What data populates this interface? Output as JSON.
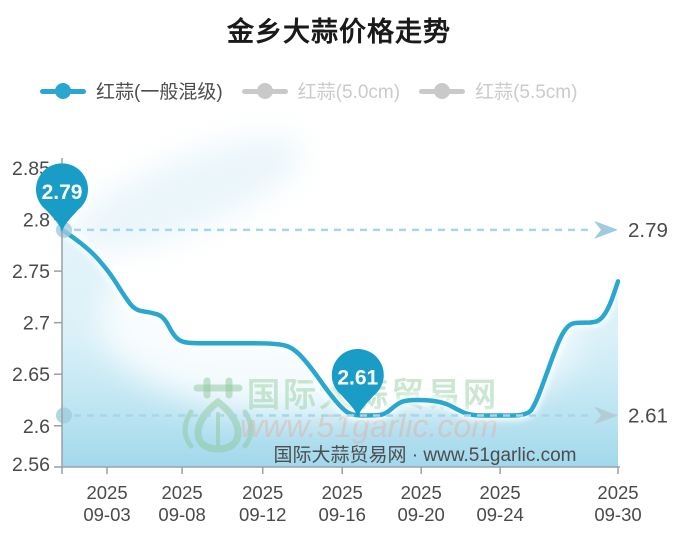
{
  "header": {
    "title": "金乡大蒜价格走势"
  },
  "legend": {
    "items": [
      {
        "label": "红蒜(一般混级)",
        "active": true
      },
      {
        "label": "红蒜(5.0cm)",
        "active": false
      },
      {
        "label": "红蒜(5.5cm)",
        "active": false
      }
    ]
  },
  "watermark": {
    "site_name": "国际大蒜贸易网",
    "site_url": "www.51garlic.com",
    "icon": "garlic-bulb-logo"
  },
  "footer": {
    "text": "国际大蒜贸易网 · www.51garlic.com"
  },
  "colors": {
    "line": "#29a7cf",
    "pin": "#199dc7",
    "dashed": "#a6d6e7",
    "arrow_top": "#9ecbe0",
    "arrow_bottom": "#b3cdd6",
    "axis": "#9aa0a6",
    "tick_text": "#4a4a4a",
    "annotation_text": "#4a4a4a",
    "start_dot": "#9fccdc",
    "inactive": "#c9c9c9",
    "fill_top": "rgba(177,224,240,0.30)",
    "fill_mid": "rgba(187,229,243,0.55)",
    "fill_bottom": "rgba(156,214,234,0.95)"
  },
  "chart_data": {
    "type": "area",
    "title": "金乡大蒜价格走势",
    "x_range": [
      "2025-09-03",
      "2025-09-30"
    ],
    "ylim": [
      2.56,
      2.85
    ],
    "grid": false,
    "legend_position": "top-left",
    "series": [
      {
        "name": "红蒜(一般混级)",
        "active": true,
        "points": [
          [
            0.0,
            2.79
          ],
          [
            0.02,
            2.783
          ],
          [
            0.05,
            2.77
          ],
          [
            0.068,
            2.76
          ],
          [
            0.09,
            2.745
          ],
          [
            0.112,
            2.726
          ],
          [
            0.131,
            2.712
          ],
          [
            0.16,
            2.71
          ],
          [
            0.183,
            2.706
          ],
          [
            0.2,
            2.688
          ],
          [
            0.215,
            2.681
          ],
          [
            0.24,
            2.68
          ],
          [
            0.3,
            2.68
          ],
          [
            0.392,
            2.68
          ],
          [
            0.42,
            2.674
          ],
          [
            0.45,
            2.655
          ],
          [
            0.48,
            2.632
          ],
          [
            0.505,
            2.616
          ],
          [
            0.522,
            2.61
          ],
          [
            0.56,
            2.61
          ],
          [
            0.581,
            2.611
          ],
          [
            0.6,
            2.62
          ],
          [
            0.617,
            2.625
          ],
          [
            0.66,
            2.625
          ],
          [
            0.69,
            2.622
          ],
          [
            0.71,
            2.616
          ],
          [
            0.734,
            2.61
          ],
          [
            0.78,
            2.61
          ],
          [
            0.838,
            2.61
          ],
          [
            0.852,
            2.622
          ],
          [
            0.868,
            2.645
          ],
          [
            0.886,
            2.672
          ],
          [
            0.9,
            2.69
          ],
          [
            0.914,
            2.699
          ],
          [
            0.93,
            2.7
          ],
          [
            0.955,
            2.7
          ],
          [
            0.97,
            2.703
          ],
          [
            0.985,
            2.716
          ],
          [
            1.0,
            2.74
          ]
        ]
      },
      {
        "name": "红蒜(5.0cm)",
        "active": false
      },
      {
        "name": "红蒜(5.5cm)",
        "active": false
      }
    ],
    "x_ticks": [
      {
        "year": "2025",
        "date": "09-03",
        "pos": 0.081
      },
      {
        "year": "2025",
        "date": "09-08",
        "pos": 0.216
      },
      {
        "year": "2025",
        "date": "09-12",
        "pos": 0.361
      },
      {
        "year": "2025",
        "date": "09-16",
        "pos": 0.504
      },
      {
        "year": "2025",
        "date": "09-20",
        "pos": 0.646
      },
      {
        "year": "2025",
        "date": "09-24",
        "pos": 0.788
      },
      {
        "year": "2025",
        "date": "09-30",
        "pos": 1.0
      }
    ],
    "y_ticks": [
      {
        "label": "2.85",
        "value": 2.85
      },
      {
        "label": "2.8",
        "value": 2.8
      },
      {
        "label": "2.75",
        "value": 2.75
      },
      {
        "label": "2.7",
        "value": 2.7
      },
      {
        "label": "2.65",
        "value": 2.65
      },
      {
        "label": "2.6",
        "value": 2.6
      },
      {
        "label": "2.56",
        "value": 2.56
      }
    ],
    "annotations": {
      "max": {
        "label": "2.79",
        "value": 2.79,
        "pos": 0.0
      },
      "min": {
        "label": "2.61",
        "value": 2.61,
        "pos": 0.532
      }
    }
  }
}
